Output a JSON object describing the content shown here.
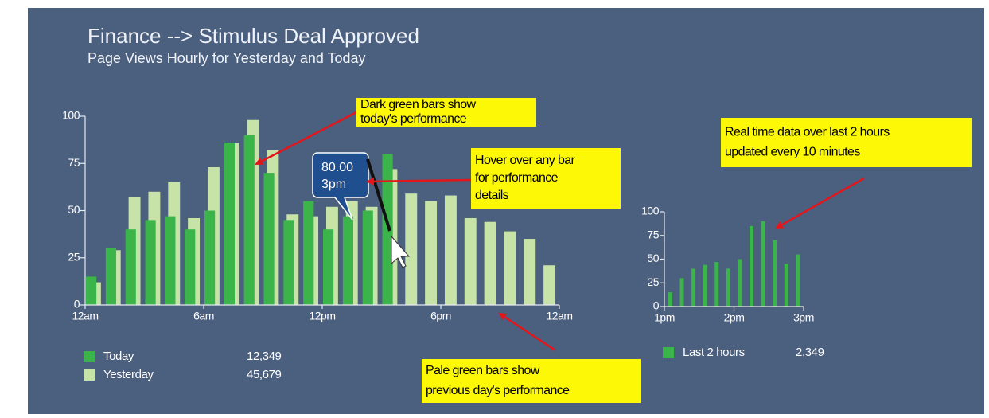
{
  "header": {
    "title": "Finance --> Stimulus Deal Approved",
    "subtitle": "Page Views Hourly for Yesterday and Today"
  },
  "chart_data": [
    {
      "type": "bar",
      "x": [
        0,
        1,
        2,
        3,
        4,
        5,
        6,
        7,
        8,
        9,
        10,
        11,
        12,
        13,
        14,
        15,
        16,
        17,
        18,
        19,
        20,
        21,
        22,
        23
      ],
      "xlim": [
        0,
        24
      ],
      "xticks": [
        {
          "value": 0,
          "label": "12am"
        },
        {
          "value": 6,
          "label": "6am"
        },
        {
          "value": 12,
          "label": "12pm"
        },
        {
          "value": 18,
          "label": "6pm"
        },
        {
          "value": 24,
          "label": "12am"
        }
      ],
      "ylim": [
        0,
        100
      ],
      "yticks": [
        0,
        25,
        50,
        75,
        100
      ],
      "series": [
        {
          "name": "Today",
          "color": "#3bb54a",
          "total": {
            "value": 12349,
            "label": "12,349"
          },
          "values": [
            15,
            30,
            40,
            45,
            47,
            40,
            50,
            86,
            90,
            70,
            45,
            55,
            40,
            47,
            50,
            80,
            null,
            null,
            null,
            null,
            null,
            null,
            null,
            null
          ]
        },
        {
          "name": "Yesterday",
          "color": "#c8e3a8",
          "total": {
            "value": 45679,
            "label": "45,679"
          },
          "values": [
            12,
            29,
            57,
            60,
            65,
            46,
            73,
            86,
            98,
            82,
            48,
            47,
            52,
            55,
            52,
            72,
            59,
            55,
            58,
            46,
            44,
            39,
            35,
            21
          ]
        }
      ]
    },
    {
      "type": "bar",
      "x": [
        0,
        10,
        20,
        30,
        40,
        50,
        60,
        70,
        80,
        90,
        100,
        110
      ],
      "xlim": [
        0,
        120
      ],
      "xticks": [
        {
          "value": 0,
          "label": "1pm"
        },
        {
          "value": 60,
          "label": "2pm"
        },
        {
          "value": 120,
          "label": "3pm"
        }
      ],
      "ylim": [
        0,
        100
      ],
      "yticks": [
        0,
        25,
        50,
        75,
        100
      ],
      "series": [
        {
          "name": "Last 2 hours",
          "color": "#3bb54a",
          "total": {
            "value": 2349,
            "label": "2,349"
          },
          "values": [
            15,
            30,
            40,
            44,
            47,
            40,
            50,
            85,
            90,
            70,
            45,
            55
          ]
        }
      ]
    }
  ],
  "tooltip": {
    "value_label": "80.00",
    "x_label": "3pm"
  },
  "annotations": [
    {
      "lines": [
        "Dark green bars show",
        "today's performance"
      ]
    },
    {
      "lines": [
        "Hover over any bar",
        "for performance",
        "details"
      ]
    },
    {
      "lines": [
        "Real time data over last 2 hours",
        "updated every 10 minutes"
      ]
    },
    {
      "lines": [
        "Pale green bars show",
        "previous day's performance"
      ]
    }
  ]
}
